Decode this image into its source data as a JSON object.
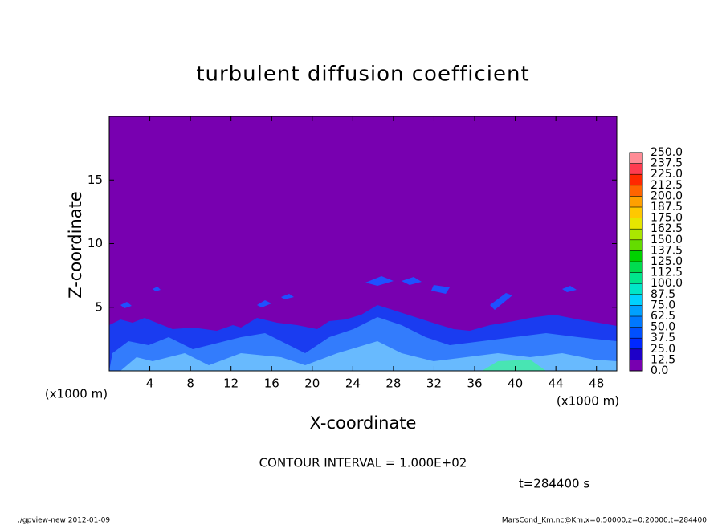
{
  "chart_data": {
    "type": "contour",
    "title": "turbulent diffusion coefficient",
    "xlabel": "X-coordinate",
    "ylabel": "Z-coordinate",
    "x_unit": "(x1000 m)",
    "z_unit": "(x1000 m)",
    "xlim": [
      0,
      50
    ],
    "ylim": [
      0,
      20
    ],
    "xticks": [
      4,
      8,
      12,
      16,
      20,
      24,
      28,
      32,
      36,
      40,
      44,
      48
    ],
    "yticks": [
      5,
      10,
      15
    ],
    "contour_interval": "CONTOUR INTERVAL = 1.000E+02",
    "time_label": "t=284400 s",
    "footer_left": "./gpview-new  2012-01-09",
    "footer_right": "MarsCond_Km.nc@Km,x=0:50000,z=0:20000,t=284400",
    "colorbar": {
      "levels": [
        {
          "value": 0,
          "label": "0.0"
        },
        {
          "value": 12.5,
          "label": "12.5"
        },
        {
          "value": 25,
          "label": "25.0"
        },
        {
          "value": 37.5,
          "label": "37.5"
        },
        {
          "value": 50,
          "label": "50.0"
        },
        {
          "value": 62.5,
          "label": "62.5"
        },
        {
          "value": 75,
          "label": "75.0"
        },
        {
          "value": 87.5,
          "label": "87.5"
        },
        {
          "value": 100,
          "label": "100.0"
        },
        {
          "value": 112.5,
          "label": "112.5"
        },
        {
          "value": 125,
          "label": "125.0"
        },
        {
          "value": 137.5,
          "label": "137.5"
        },
        {
          "value": 150,
          "label": "150.0"
        },
        {
          "value": 162.5,
          "label": "162.5"
        },
        {
          "value": 175,
          "label": "175.0"
        },
        {
          "value": 187.5,
          "label": "187.5"
        },
        {
          "value": 200,
          "label": "200.0"
        },
        {
          "value": 212.5,
          "label": "212.5"
        },
        {
          "value": 225,
          "label": "225.0"
        },
        {
          "value": 237.5,
          "label": "237.5"
        },
        {
          "value": 250,
          "label": "250.0"
        }
      ],
      "colors": [
        "#7800b0",
        "#1e00c8",
        "#0028ff",
        "#0050ff",
        "#0078ff",
        "#00a0ff",
        "#00d2ff",
        "#00e6c8",
        "#00e68c",
        "#00dc50",
        "#00d200",
        "#64dc00",
        "#aae600",
        "#e6e600",
        "#ffc800",
        "#ffa000",
        "#ff6400",
        "#ff2800",
        "#ff3c50",
        "#ff8c96"
      ]
    }
  }
}
